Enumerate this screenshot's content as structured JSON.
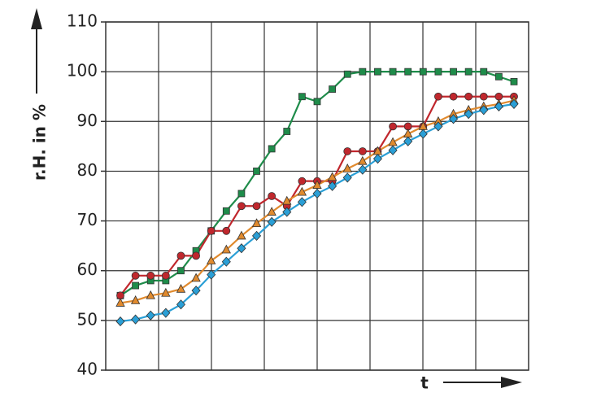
{
  "chart_data": {
    "type": "line",
    "ylabel": "r.H. in %",
    "xlabel": "t",
    "categories": [
      null,
      null,
      null,
      null,
      null,
      null,
      null,
      null,
      null,
      null,
      null,
      null,
      null,
      null,
      null,
      null,
      null,
      null,
      null,
      null,
      null,
      null,
      null,
      null,
      null,
      null,
      null
    ],
    "ylim": [
      40,
      110
    ],
    "yticks": [
      40,
      50,
      60,
      70,
      80,
      90,
      100,
      110
    ],
    "grid": true,
    "series": [
      {
        "color": "#1e8c4a",
        "marker": "square",
        "values": [
          55,
          57,
          58,
          58,
          60,
          64,
          68,
          72,
          75.5,
          80,
          84.5,
          88,
          95,
          94,
          96.5,
          99.5,
          100,
          100,
          100,
          100,
          100,
          100,
          100,
          100,
          100,
          99,
          98
        ]
      },
      {
        "color": "#c0272d",
        "marker": "circle",
        "values": [
          55,
          59,
          59,
          59,
          63,
          63,
          68,
          68,
          73,
          73,
          75,
          73,
          78,
          78,
          78,
          84,
          84,
          84,
          89,
          89,
          89,
          95,
          95,
          95,
          95,
          95,
          95
        ]
      },
      {
        "color": "#e08a2e",
        "marker": "triangle",
        "values": [
          53.5,
          54,
          55,
          55.5,
          56.3,
          58.5,
          62,
          64.2,
          67,
          69.5,
          71.8,
          74,
          75.8,
          77.2,
          78.8,
          80.5,
          82,
          84,
          85.8,
          87.5,
          89,
          90,
          91.5,
          92.3,
          93,
          93.5,
          94.2
        ]
      },
      {
        "color": "#2a9fd6",
        "marker": "diamond",
        "values": [
          49.8,
          50.2,
          51,
          51.5,
          53.2,
          56,
          59.2,
          61.8,
          64.5,
          67,
          69.8,
          71.8,
          73.8,
          75.5,
          77,
          78.7,
          80.3,
          82.5,
          84.2,
          86,
          87.5,
          89,
          90.5,
          91.5,
          92.3,
          93,
          93.5
        ]
      }
    ]
  }
}
